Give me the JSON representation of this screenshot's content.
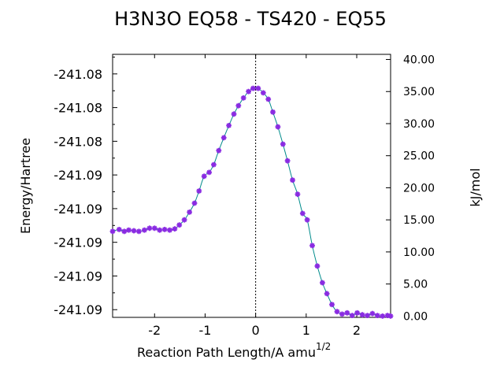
{
  "chart_data": {
    "type": "line",
    "title": "H3N3O   EQ58 - TS420 - EQ55",
    "xlabel": "Reaction Path Length/A amu",
    "xlabel_sup": "1/2",
    "ylabel": "Energy/Hartree",
    "y2label": "kJ/mol",
    "xlim": [
      -2.83,
      2.67
    ],
    "ylim_kjmol": [
      -0.2,
      40.8
    ],
    "x_ticks": [
      -2,
      -1,
      0,
      1,
      2
    ],
    "x_tick_labels": [
      "-2",
      "-1",
      "0",
      "1",
      "2"
    ],
    "y_left_ticks_kjmol": [
      1.0,
      6.25,
      11.5,
      16.75,
      22.0,
      27.25,
      32.5,
      37.75
    ],
    "y_left_tick_labels": [
      "-241.09",
      "-241.09",
      "-241.09",
      "-241.09",
      "-241.09",
      "-241.08",
      "-241.08",
      "-241.08"
    ],
    "y_right_ticks": [
      0,
      5,
      10,
      15,
      20,
      25,
      30,
      35,
      40
    ],
    "y_right_tick_labels": [
      "0.00",
      "5.00",
      "10.00",
      "15.00",
      "20.00",
      "25.00",
      "30.00",
      "35.00",
      "40.00"
    ],
    "ts_line_x": 0,
    "grid": false,
    "colors": {
      "line": "#008b8b",
      "marker": "#8a2be2",
      "axis": "#000000"
    },
    "series": [
      {
        "x": [
          -2.83,
          -2.7,
          -2.6,
          -2.51,
          -2.41,
          -2.31,
          -2.2,
          -2.1,
          -2.0,
          -1.9,
          -1.8,
          -1.7,
          -1.6,
          -1.51,
          -1.41,
          -1.31,
          -1.21,
          -1.12,
          -1.02,
          -0.92,
          -0.83,
          -0.73,
          -0.63,
          -0.53,
          -0.43,
          -0.34,
          -0.24,
          -0.14,
          -0.05,
          0.05,
          0.15,
          0.25,
          0.34,
          0.44,
          0.54,
          0.63,
          0.73,
          0.83,
          0.93,
          1.02,
          1.12,
          1.22,
          1.32,
          1.41,
          1.51,
          1.61,
          1.71,
          1.81,
          1.91,
          2.01,
          2.11,
          2.21,
          2.31,
          2.41,
          2.51,
          2.61,
          2.67
        ],
        "y": [
          13.2,
          13.5,
          13.2,
          13.4,
          13.3,
          13.2,
          13.4,
          13.7,
          13.7,
          13.4,
          13.5,
          13.4,
          13.6,
          14.2,
          15.0,
          16.2,
          17.6,
          19.5,
          21.8,
          22.4,
          23.6,
          25.8,
          27.8,
          29.7,
          31.5,
          32.8,
          34.0,
          35.0,
          35.5,
          35.5,
          34.8,
          33.8,
          31.8,
          29.5,
          26.8,
          24.2,
          21.2,
          19.0,
          16.0,
          15.0,
          11.0,
          7.8,
          5.2,
          3.5,
          1.8,
          0.7,
          0.3,
          0.5,
          0.1,
          0.5,
          0.2,
          0.1,
          0.4,
          0.1,
          0.0,
          0.1,
          0.0
        ]
      }
    ]
  }
}
